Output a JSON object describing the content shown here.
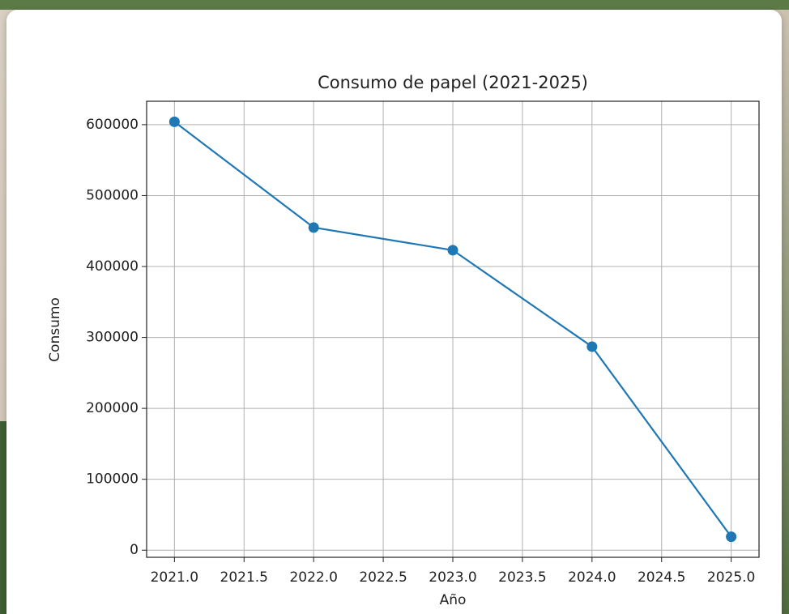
{
  "chart_data": {
    "type": "line",
    "title": "Consumo de papel (2021-2025)",
    "x_label": "Año",
    "y_label": "Consumo",
    "x": [
      2021,
      2022,
      2023,
      2024,
      2025
    ],
    "values": [
      604000,
      455000,
      423000,
      287000,
      19000
    ],
    "color": "#1f77b4",
    "xlim": [
      2020.8,
      2025.2
    ],
    "xticks": [
      {
        "value": 2021,
        "label": "2021.0"
      },
      2021.5,
      {
        "value": 2022,
        "label": "2022.0"
      },
      2022.5,
      {
        "value": 2023,
        "label": "2023.0"
      },
      2023.5,
      {
        "value": 2024,
        "label": "2024.0"
      },
      2024.5,
      {
        "value": 2025,
        "label": "2025.0"
      }
    ],
    "ylim": [
      -10000,
      633000
    ],
    "yticks": [
      0,
      100000,
      200000,
      300000,
      400000,
      500000,
      600000
    ],
    "grid": true
  }
}
